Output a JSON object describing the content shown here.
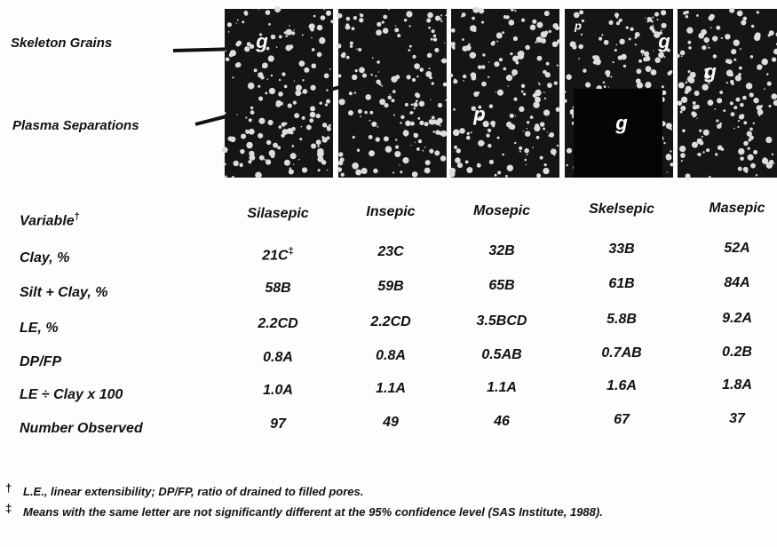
{
  "figure": {
    "labels": [
      "Skeleton Grains",
      "Plasma Separations"
    ],
    "panels": [
      {
        "labels": [
          "g"
        ]
      },
      {
        "labels": []
      },
      {
        "labels": [
          "p"
        ]
      },
      {
        "labels": [
          "p",
          "g",
          "g"
        ]
      },
      {
        "labels": [
          "g"
        ]
      }
    ]
  },
  "table": {
    "header": [
      "Variable",
      "Silasepic",
      "Insepic",
      "Mosepic",
      "Skelsepic",
      "Masepic"
    ],
    "header_mark": "†",
    "rows": [
      [
        {
          "text": "Clay, %"
        },
        {
          "text": "21C",
          "mark": "‡"
        },
        {
          "text": "23C"
        },
        {
          "text": "32B"
        },
        {
          "text": "33B"
        },
        {
          "text": "52A"
        }
      ],
      [
        {
          "text": "Silt + Clay, %"
        },
        {
          "text": "58B"
        },
        {
          "text": "59B"
        },
        {
          "text": "65B"
        },
        {
          "text": "61B"
        },
        {
          "text": "84A"
        }
      ],
      [
        {
          "text": "LE, %"
        },
        {
          "text": "2.2CD"
        },
        {
          "text": "2.2CD"
        },
        {
          "text": "3.5BCD"
        },
        {
          "text": "5.8B"
        },
        {
          "text": "9.2A"
        }
      ],
      [
        {
          "text": "DP/FP"
        },
        {
          "text": "0.8A"
        },
        {
          "text": "0.8A"
        },
        {
          "text": "0.5AB"
        },
        {
          "text": "0.7AB"
        },
        {
          "text": "0.2B"
        }
      ],
      [
        {
          "text": "LE ÷ Clay x 100"
        },
        {
          "text": "1.0A"
        },
        {
          "text": "1.1A"
        },
        {
          "text": "1.1A"
        },
        {
          "text": "1.6A"
        },
        {
          "text": "1.8A"
        }
      ],
      [
        {
          "text": "Number Observed"
        },
        {
          "text": "97"
        },
        {
          "text": "49"
        },
        {
          "text": "46"
        },
        {
          "text": "67"
        },
        {
          "text": "37"
        }
      ]
    ]
  },
  "footnotes": [
    {
      "mark": "†",
      "text": "L.E., linear extensibility; DP/FP, ratio of drained to filled pores."
    },
    {
      "mark": "‡",
      "text": "Means with the same letter are not significantly different at the 95% confidence level (SAS Institute, 1988)."
    }
  ]
}
